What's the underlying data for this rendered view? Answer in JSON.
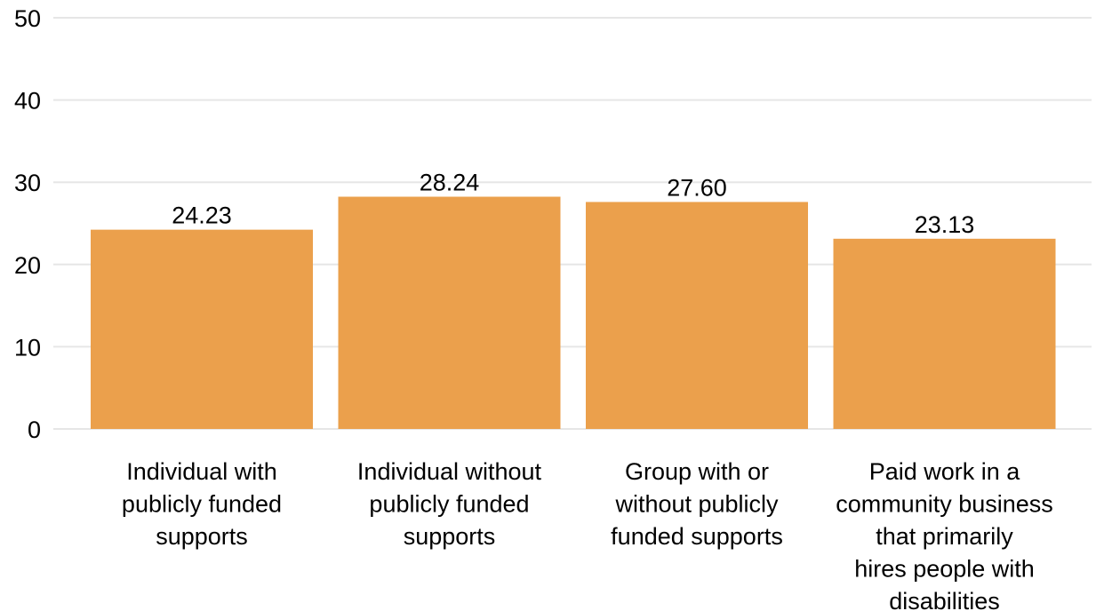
{
  "chart_data": {
    "type": "bar",
    "title": "",
    "xlabel": "",
    "ylabel": "",
    "ylim": [
      0,
      50
    ],
    "yticks": [
      0,
      10,
      20,
      30,
      40,
      50
    ],
    "grid": true,
    "bar_color": "#eba04c",
    "categories": [
      [
        "Individual with",
        "publicly funded",
        "supports"
      ],
      [
        "Individual without",
        "publicly funded",
        "supports"
      ],
      [
        "Group with or",
        "without publicly",
        "funded supports"
      ],
      [
        "Paid work in a",
        "community business",
        "that primarily",
        "hires people with",
        "disabilities"
      ]
    ],
    "values": [
      24.23,
      28.24,
      27.6,
      23.13
    ],
    "value_labels": [
      "24.23",
      "28.24",
      "27.60",
      "23.13"
    ]
  }
}
